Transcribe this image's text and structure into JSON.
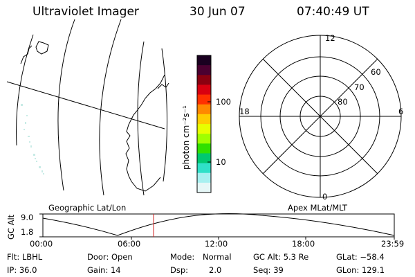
{
  "header": {
    "title": "Ultraviolet Imager",
    "date": "30 Jun 07",
    "time": "07:40:49 UT"
  },
  "colorbar": {
    "unit_label": "photon cm⁻²s⁻¹",
    "ticks": [
      "100",
      "10"
    ],
    "scale": "log",
    "colors": [
      "#1a0020",
      "#4b0030",
      "#8a0010",
      "#d80010",
      "#ff3000",
      "#ff8800",
      "#ffcc00",
      "#e8ff00",
      "#a0ff00",
      "#30e000",
      "#00c870",
      "#30e0c8",
      "#a8f0f0",
      "#e6f7f7"
    ]
  },
  "polar_plot": {
    "mlt_labels": [
      "12",
      "18",
      "6",
      "0"
    ],
    "lat_labels": [
      "60",
      "70",
      "80"
    ]
  },
  "altitude_plot": {
    "left_title": "Geographic Lat/Lon",
    "right_title": "Apex MLat/MLT",
    "y_axis_label": "GC Alt",
    "y_ticks": [
      "9.0",
      "1.8"
    ],
    "x_ticks": [
      "00:00",
      "06:00",
      "12:00",
      "18:00",
      "23:59"
    ],
    "current_time_marker_color": "#d02020"
  },
  "status": {
    "flt": "Flt: LBHL",
    "ip": "IP: 36.0",
    "door": "Door: Open",
    "gain": "Gain: 14",
    "mode_label": "Mode:",
    "mode_value": "Normal",
    "dsp_label": "Dsp:",
    "dsp_value": "2.0",
    "gc_alt": "GC Alt: 5.3 Re",
    "seq": "Seq: 39",
    "glat": "GLat: −58.4",
    "glon": "GLon: 129.1"
  }
}
